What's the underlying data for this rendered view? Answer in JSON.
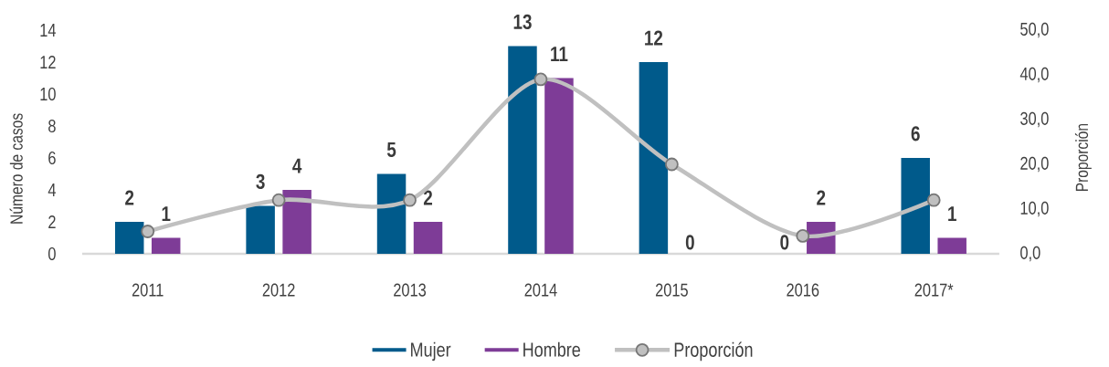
{
  "chart_data": {
    "type": "bar",
    "categories": [
      "2011",
      "2012",
      "2013",
      "2014",
      "2015",
      "2016",
      "2017*"
    ],
    "series": [
      {
        "name": "Mujer",
        "color": "#005a8b",
        "values": [
          2,
          3,
          5,
          13,
          12,
          0,
          6
        ],
        "value_labels": [
          "2",
          "3",
          "5",
          "13",
          "12",
          "0",
          "6"
        ]
      },
      {
        "name": "Hombre",
        "color": "#7e3c97",
        "values": [
          1,
          4,
          2,
          11,
          0,
          2,
          1
        ],
        "value_labels": [
          "1",
          "4",
          "2",
          "11",
          "0",
          "2",
          "1"
        ]
      },
      {
        "name": "Proporción",
        "type": "line",
        "axis": "y2",
        "color": "#c0c0c0",
        "marker": "circle",
        "values": [
          5,
          12,
          12,
          39,
          20,
          4,
          12
        ]
      }
    ],
    "ylabel": "Número de casos",
    "y2label": "Proporción",
    "ylim": [
      0,
      14
    ],
    "yticks": [
      0,
      2,
      4,
      6,
      8,
      10,
      12,
      14
    ],
    "y2lim": [
      0,
      50
    ],
    "y2ticks": [
      {
        "value": 0,
        "label": "0,0"
      },
      {
        "value": 10,
        "label": "10,0"
      },
      {
        "value": 20,
        "label": "20,0"
      },
      {
        "value": 30,
        "label": "30,0"
      },
      {
        "value": 40,
        "label": "40,0"
      },
      {
        "value": 50,
        "label": "50,0"
      }
    ],
    "legend": "bottom"
  }
}
